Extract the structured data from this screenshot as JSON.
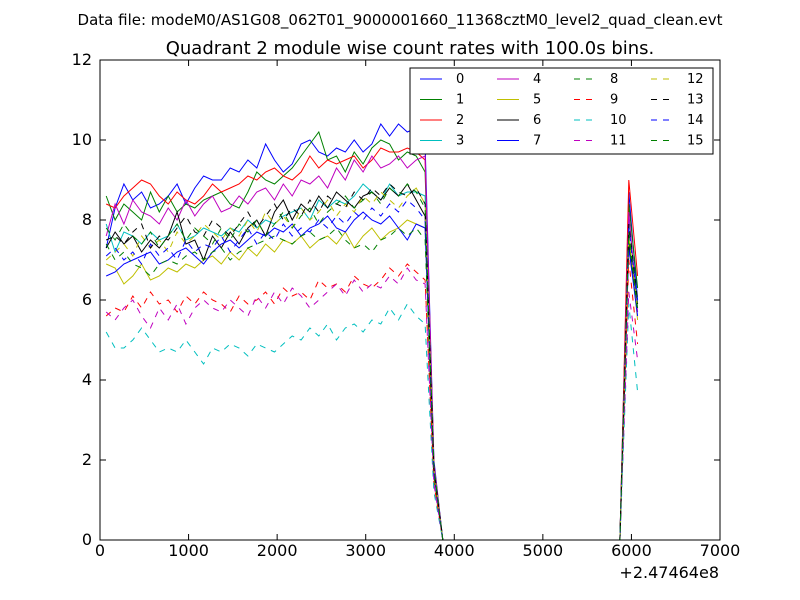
{
  "suptitle": "Data file: modeM0/AS1G08_062T01_9000001660_11368cztM0_level2_quad_clean.evt",
  "chart_data": {
    "type": "line",
    "title": "Quadrant 2 module wise count rates with 100.0s bins.",
    "xlabel": "",
    "ylabel": "",
    "x_offset_label": "+2.47464e8",
    "xlim": [
      0,
      7000
    ],
    "ylim": [
      0,
      12
    ],
    "x_ticks": [
      0,
      1000,
      2000,
      3000,
      4000,
      5000,
      6000,
      7000
    ],
    "y_ticks": [
      0,
      2,
      4,
      6,
      8,
      10,
      12
    ],
    "grid": false,
    "legend": {
      "position": "top-right",
      "columns": 4
    },
    "x": [
      70,
      170,
      270,
      370,
      470,
      570,
      670,
      770,
      870,
      970,
      1070,
      1170,
      1270,
      1370,
      1470,
      1570,
      1670,
      1770,
      1870,
      1970,
      2070,
      2170,
      2270,
      2370,
      2470,
      2570,
      2670,
      2770,
      2870,
      2970,
      3070,
      3170,
      3270,
      3370,
      3470,
      3570,
      3670,
      3770,
      3870,
      3970,
      4070,
      4170,
      4270,
      4370,
      4470,
      4570,
      4670,
      4770,
      4870,
      4970,
      5070,
      5170,
      5270,
      5370,
      5470,
      5570,
      5670,
      5770,
      5870,
      5970,
      6070
    ],
    "series": [
      {
        "name": "0",
        "color": "#0000ff",
        "dash": false,
        "values": [
          7.3,
          8.3,
          8.9,
          8.5,
          8.7,
          8.3,
          8.4,
          8.6,
          8.9,
          8.4,
          8.8,
          9.1,
          9.0,
          9.0,
          9.3,
          9.2,
          9.5,
          9.3,
          9.9,
          9.5,
          9.2,
          9.4,
          9.9,
          10.0,
          9.7,
          9.6,
          9.8,
          9.7,
          10.0,
          9.7,
          9.9,
          10.4,
          10.1,
          10.4,
          10.2,
          10.3,
          9.9,
          2.0,
          0,
          0,
          0,
          0,
          0,
          0,
          0,
          0,
          0,
          0,
          0,
          0,
          0,
          0,
          0,
          0,
          0,
          0,
          0,
          0,
          0,
          8.7,
          6.0
        ]
      },
      {
        "name": "1",
        "color": "#008000",
        "dash": false,
        "values": [
          8.6,
          8.0,
          8.4,
          8.2,
          8.0,
          8.7,
          8.2,
          8.6,
          8.2,
          8.4,
          8.3,
          8.5,
          8.6,
          8.7,
          8.4,
          8.3,
          8.7,
          9.2,
          9.0,
          8.9,
          9.1,
          9.3,
          9.6,
          9.9,
          10.2,
          9.5,
          9.6,
          9.2,
          9.7,
          9.4,
          9.8,
          10.0,
          9.9,
          9.5,
          9.7,
          9.6,
          9.2,
          1.9,
          0,
          0,
          0,
          0,
          0,
          0,
          0,
          0,
          0,
          0,
          0,
          0,
          0,
          0,
          0,
          0,
          0,
          0,
          0,
          0,
          0,
          8.4,
          6.3
        ]
      },
      {
        "name": "2",
        "color": "#ff0000",
        "dash": false,
        "values": [
          8.4,
          8.3,
          8.6,
          8.8,
          9.0,
          8.9,
          8.6,
          8.4,
          8.7,
          8.5,
          8.4,
          8.6,
          8.9,
          8.7,
          8.8,
          8.9,
          9.1,
          9.0,
          9.2,
          9.3,
          9.1,
          9.0,
          9.2,
          9.6,
          9.3,
          9.5,
          9.4,
          9.5,
          9.6,
          9.3,
          9.5,
          9.8,
          9.7,
          9.7,
          9.8,
          9.7,
          9.5,
          1.9,
          0,
          0,
          0,
          0,
          0,
          0,
          0,
          0,
          0,
          0,
          0,
          0,
          0,
          0,
          0,
          0,
          0,
          0,
          0,
          0,
          0,
          9.0,
          6.6
        ]
      },
      {
        "name": "3",
        "color": "#00bfbf",
        "dash": false,
        "values": [
          7.9,
          7.2,
          7.7,
          7.6,
          7.4,
          7.7,
          7.5,
          7.6,
          7.9,
          7.5,
          7.6,
          7.8,
          7.7,
          7.6,
          7.8,
          7.7,
          8.0,
          7.8,
          8.0,
          7.9,
          8.1,
          8.2,
          8.3,
          8.0,
          8.5,
          8.3,
          8.5,
          8.4,
          8.6,
          8.9,
          8.7,
          8.5,
          8.9,
          8.6,
          8.7,
          8.7,
          8.6,
          1.8,
          0,
          0,
          0,
          0,
          0,
          0,
          0,
          0,
          0,
          0,
          0,
          0,
          0,
          0,
          0,
          0,
          0,
          0,
          0,
          0,
          0,
          8.0,
          5.9
        ]
      },
      {
        "name": "4",
        "color": "#bf00bf",
        "dash": false,
        "values": [
          7.6,
          8.4,
          7.9,
          8.5,
          8.2,
          8.1,
          7.9,
          8.3,
          8.0,
          8.5,
          8.1,
          8.4,
          8.6,
          8.2,
          8.3,
          8.6,
          8.4,
          8.7,
          8.8,
          8.5,
          8.9,
          8.6,
          9.0,
          8.9,
          9.1,
          8.8,
          9.3,
          9.0,
          9.5,
          9.2,
          9.6,
          9.3,
          9.4,
          9.6,
          9.3,
          9.5,
          9.6,
          1.9,
          0,
          0,
          0,
          0,
          0,
          0,
          0,
          0,
          0,
          0,
          0,
          0,
          0,
          0,
          0,
          0,
          0,
          0,
          0,
          0,
          0,
          8.2,
          5.7
        ]
      },
      {
        "name": "5",
        "color": "#bfbf00",
        "dash": false,
        "values": [
          6.9,
          6.8,
          6.4,
          6.6,
          6.9,
          6.5,
          6.6,
          6.8,
          6.7,
          6.9,
          6.8,
          7.0,
          7.1,
          6.9,
          7.2,
          7.0,
          7.3,
          7.1,
          7.4,
          7.2,
          7.5,
          7.4,
          7.6,
          7.3,
          7.5,
          7.6,
          7.4,
          7.7,
          7.3,
          7.6,
          7.8,
          7.5,
          7.7,
          7.8,
          8.0,
          7.9,
          7.8,
          1.6,
          0,
          0,
          0,
          0,
          0,
          0,
          0,
          0,
          0,
          0,
          0,
          0,
          0,
          0,
          0,
          0,
          0,
          0,
          0,
          0,
          0,
          7.6,
          5.5
        ]
      },
      {
        "name": "6",
        "color": "#000000",
        "dash": false,
        "values": [
          7.3,
          7.7,
          7.4,
          7.6,
          7.2,
          7.5,
          7.3,
          7.6,
          8.2,
          7.4,
          7.5,
          7.0,
          7.6,
          7.3,
          7.7,
          7.4,
          7.8,
          8.0,
          7.6,
          8.2,
          8.5,
          8.0,
          8.4,
          8.2,
          8.6,
          8.3,
          8.7,
          8.5,
          8.3,
          8.6,
          8.7,
          8.5,
          8.8,
          8.6,
          8.9,
          8.5,
          8.1,
          1.7,
          0,
          0,
          0,
          0,
          0,
          0,
          0,
          0,
          0,
          0,
          0,
          0,
          0,
          0,
          0,
          0,
          0,
          0,
          0,
          0,
          0,
          7.4,
          5.9
        ]
      },
      {
        "name": "7",
        "color": "#0000ff",
        "dash": false,
        "values": [
          6.6,
          6.7,
          6.9,
          7.0,
          7.1,
          7.2,
          6.9,
          7.0,
          7.2,
          7.3,
          7.1,
          6.9,
          7.2,
          7.4,
          7.5,
          7.3,
          7.5,
          7.7,
          7.6,
          7.8,
          7.7,
          7.9,
          7.6,
          7.8,
          7.9,
          8.1,
          7.8,
          7.7,
          8.0,
          8.2,
          8.0,
          7.9,
          8.1,
          7.8,
          7.5,
          7.9,
          7.8,
          1.7,
          0,
          0,
          0,
          0,
          0,
          0,
          0,
          0,
          0,
          0,
          0,
          0,
          0,
          0,
          0,
          0,
          0,
          0,
          0,
          0,
          0,
          7.3,
          5.6
        ]
      },
      {
        "name": "8",
        "color": "#008000",
        "dash": true,
        "values": [
          7.4,
          7.0,
          7.2,
          6.9,
          6.8,
          6.6,
          6.9,
          7.0,
          6.9,
          7.1,
          7.2,
          7.0,
          7.2,
          7.3,
          7.0,
          7.2,
          7.3,
          7.4,
          7.5,
          7.6,
          7.5,
          7.4,
          7.6,
          7.7,
          7.5,
          7.6,
          7.8,
          7.5,
          7.3,
          7.4,
          7.2,
          7.5,
          7.6,
          7.8,
          7.6,
          7.8,
          7.5,
          1.6,
          0,
          0,
          0,
          0,
          0,
          0,
          0,
          0,
          0,
          0,
          0,
          0,
          0,
          0,
          0,
          0,
          0,
          0,
          0,
          0,
          0,
          7.5,
          5.7
        ]
      },
      {
        "name": "9",
        "color": "#ff0000",
        "dash": true,
        "values": [
          5.6,
          5.8,
          5.7,
          6.1,
          5.8,
          6.2,
          5.9,
          6.0,
          5.7,
          6.1,
          5.9,
          6.2,
          6.0,
          5.9,
          5.7,
          6.1,
          5.9,
          6.0,
          6.2,
          5.9,
          6.3,
          6.1,
          6.2,
          6.0,
          6.5,
          6.3,
          6.4,
          6.2,
          6.6,
          6.4,
          6.3,
          6.5,
          6.8,
          6.6,
          6.9,
          6.7,
          6.5,
          1.4,
          0,
          0,
          0,
          0,
          0,
          0,
          0,
          0,
          0,
          0,
          0,
          0,
          0,
          0,
          0,
          0,
          0,
          0,
          0,
          0,
          0,
          7.0,
          4.9
        ]
      },
      {
        "name": "10",
        "color": "#00bfbf",
        "dash": true,
        "values": [
          5.2,
          4.8,
          4.8,
          5.0,
          5.3,
          5.0,
          4.7,
          4.8,
          4.7,
          5.0,
          4.7,
          4.4,
          4.8,
          4.7,
          4.9,
          4.8,
          4.6,
          4.9,
          4.8,
          4.7,
          4.9,
          5.1,
          5.0,
          5.3,
          5.1,
          5.4,
          5.0,
          5.3,
          5.4,
          5.2,
          5.5,
          5.4,
          5.8,
          5.5,
          5.9,
          5.6,
          5.4,
          1.2,
          0,
          0,
          0,
          0,
          0,
          0,
          0,
          0,
          0,
          0,
          0,
          0,
          0,
          0,
          0,
          0,
          0,
          0,
          0,
          0,
          0,
          5.9,
          3.7
        ]
      },
      {
        "name": "11",
        "color": "#bf00bf",
        "dash": true,
        "values": [
          5.7,
          5.5,
          5.8,
          6.0,
          5.6,
          5.3,
          5.8,
          5.5,
          5.9,
          5.4,
          5.8,
          6.0,
          5.8,
          5.7,
          6.0,
          5.8,
          5.6,
          6.1,
          5.8,
          6.2,
          5.9,
          6.3,
          6.1,
          5.8,
          6.0,
          6.2,
          6.4,
          6.1,
          6.5,
          6.2,
          6.4,
          6.3,
          6.6,
          6.4,
          6.8,
          6.5,
          6.4,
          1.4,
          0,
          0,
          0,
          0,
          0,
          0,
          0,
          0,
          0,
          0,
          0,
          0,
          0,
          0,
          0,
          0,
          0,
          0,
          0,
          0,
          0,
          6.2,
          4.5
        ]
      },
      {
        "name": "12",
        "color": "#bfbf00",
        "dash": true,
        "values": [
          7.0,
          7.2,
          7.4,
          7.1,
          7.6,
          7.3,
          7.5,
          7.2,
          7.7,
          7.4,
          7.6,
          7.9,
          7.7,
          7.5,
          7.8,
          7.6,
          8.0,
          7.7,
          8.2,
          7.9,
          8.1,
          7.8,
          8.3,
          8.0,
          8.2,
          8.5,
          8.1,
          8.4,
          8.2,
          8.6,
          8.4,
          8.7,
          8.5,
          8.3,
          8.6,
          8.8,
          8.4,
          1.8,
          0,
          0,
          0,
          0,
          0,
          0,
          0,
          0,
          0,
          0,
          0,
          0,
          0,
          0,
          0,
          0,
          0,
          0,
          0,
          0,
          0,
          7.6,
          5.8
        ]
      },
      {
        "name": "13",
        "color": "#000000",
        "dash": true,
        "values": [
          7.5,
          7.6,
          7.4,
          7.7,
          7.9,
          7.3,
          7.6,
          7.5,
          7.8,
          8.1,
          7.7,
          7.6,
          8.0,
          7.8,
          7.6,
          7.9,
          8.2,
          7.8,
          8.1,
          8.4,
          8.0,
          8.3,
          8.1,
          8.5,
          8.2,
          8.6,
          8.4,
          8.3,
          8.7,
          8.5,
          8.8,
          8.6,
          8.9,
          8.7,
          8.6,
          8.8,
          8.4,
          1.8,
          0,
          0,
          0,
          0,
          0,
          0,
          0,
          0,
          0,
          0,
          0,
          0,
          0,
          0,
          0,
          0,
          0,
          0,
          0,
          0,
          0,
          7.9,
          6.0
        ]
      },
      {
        "name": "14",
        "color": "#0000ff",
        "dash": true,
        "values": [
          7.1,
          7.3,
          7.0,
          7.2,
          6.9,
          7.4,
          7.1,
          7.3,
          7.0,
          7.5,
          7.2,
          7.4,
          7.3,
          7.6,
          7.2,
          7.5,
          7.8,
          7.4,
          7.7,
          7.5,
          7.9,
          7.6,
          7.8,
          7.7,
          8.0,
          7.8,
          8.1,
          7.9,
          8.2,
          8.0,
          8.3,
          8.1,
          8.4,
          8.2,
          8.5,
          8.3,
          8.0,
          1.7,
          0,
          0,
          0,
          0,
          0,
          0,
          0,
          0,
          0,
          0,
          0,
          0,
          0,
          0,
          0,
          0,
          0,
          0,
          0,
          0,
          0,
          7.8,
          5.9
        ]
      },
      {
        "name": "15",
        "color": "#008000",
        "dash": true,
        "values": [
          7.8,
          7.5,
          7.9,
          7.6,
          7.4,
          7.7,
          7.3,
          7.6,
          7.9,
          7.5,
          7.8,
          7.6,
          7.4,
          7.8,
          7.5,
          7.9,
          7.7,
          8.0,
          7.6,
          7.9,
          8.2,
          7.8,
          8.1,
          8.3,
          7.9,
          8.2,
          8.4,
          8.6,
          8.3,
          8.5,
          8.7,
          8.4,
          8.8,
          8.6,
          8.9,
          8.7,
          8.3,
          1.8,
          0,
          0,
          0,
          0,
          0,
          0,
          0,
          0,
          0,
          0,
          0,
          0,
          0,
          0,
          0,
          0,
          0,
          0,
          0,
          0,
          0,
          7.7,
          5.8
        ]
      }
    ]
  }
}
